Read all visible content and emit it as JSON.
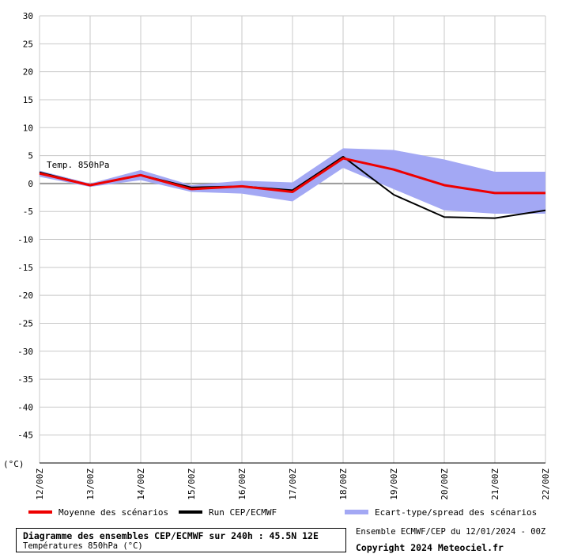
{
  "chart_data": {
    "type": "line",
    "categories": [
      "12/00Z",
      "13/00Z",
      "14/00Z",
      "15/00Z",
      "16/00Z",
      "17/00Z",
      "18/00Z",
      "19/00Z",
      "20/00Z",
      "21/00Z",
      "22/00Z"
    ],
    "yticks": [
      30,
      25,
      20,
      15,
      10,
      5,
      0,
      -5,
      -10,
      -15,
      -20,
      -25,
      -30,
      -35,
      -40,
      -45
    ],
    "ylim": [
      -50,
      30
    ],
    "unit_label": "(°C)",
    "annotation": "Temp. 850hPa",
    "series": [
      {
        "name": "Moyenne des scénarios",
        "color": "#ee0000",
        "values": [
          1.8,
          -0.3,
          1.5,
          -1.0,
          -0.5,
          -1.5,
          4.5,
          2.5,
          -0.3,
          -1.7,
          -1.7
        ]
      },
      {
        "name": "Run CEP/ECMWF",
        "color": "#000000",
        "values": [
          2.0,
          -0.3,
          1.5,
          -0.7,
          -0.5,
          -1.2,
          4.8,
          -2.0,
          -6.0,
          -6.2,
          -4.8
        ]
      }
    ],
    "spread": {
      "name": "Ecart-type/spread des scénarios",
      "color": "#a3a8f4",
      "upper": [
        2.3,
        0.0,
        2.4,
        -0.3,
        0.5,
        0.2,
        6.3,
        6.0,
        4.3,
        2.1,
        2.1
      ],
      "lower": [
        1.2,
        -0.6,
        0.6,
        -1.5,
        -1.8,
        -3.2,
        2.8,
        -1.0,
        -4.8,
        -5.4,
        -5.4
      ]
    }
  },
  "footer": {
    "title": "Diagramme des ensembles CEP/ECMWF sur 240h : 45.5N 12E",
    "subtitle": "Températures 850hPa (°C)",
    "ensemble": "Ensemble ECMWF/CEP du 12/01/2024 - 00Z",
    "copyright": "Copyright 2024 Meteociel.fr"
  }
}
